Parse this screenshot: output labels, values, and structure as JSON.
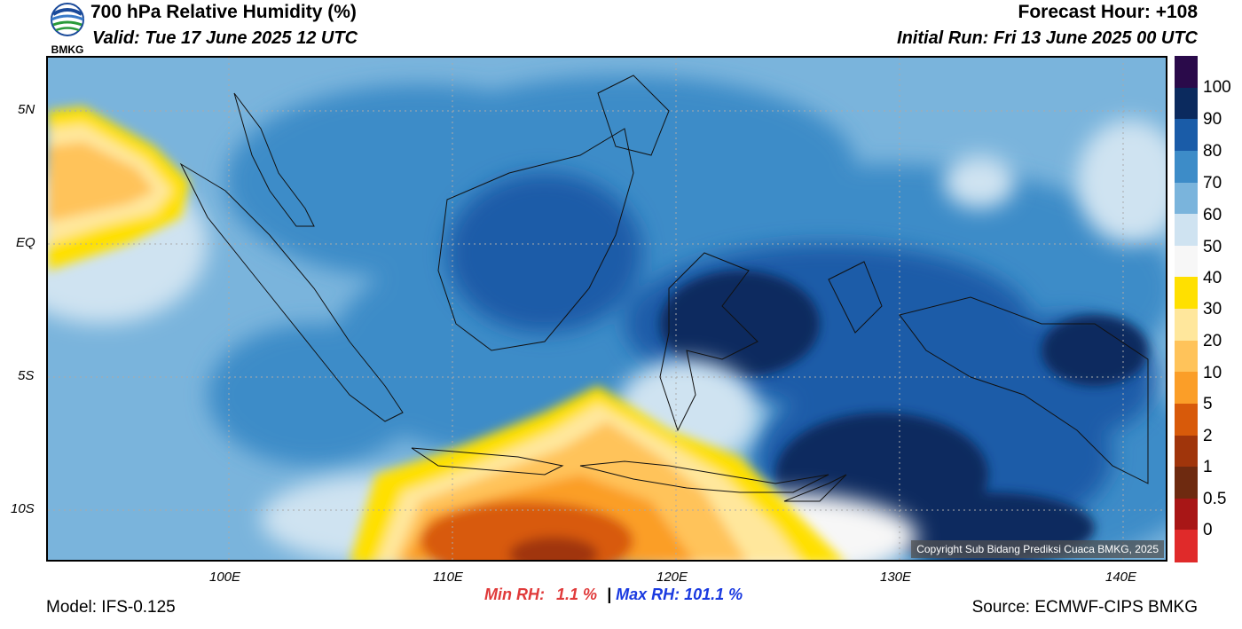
{
  "header": {
    "title": "700 hPa Relative Humidity (%)",
    "valid": "Valid: Tue 17 June 2025 12 UTC",
    "forecast_hour": "Forecast Hour: +108",
    "initial_run": "Initial Run: Fri 13 June 2025 00 UTC",
    "logo_text": "BMKG"
  },
  "map": {
    "lat_labels": [
      "5N",
      "EQ",
      "5S",
      "10S"
    ],
    "lon_labels": [
      "100E",
      "110E",
      "120E",
      "130E",
      "140E"
    ],
    "copyright": "Copyright Sub Bidang Prediksi Cuaca BMKG, 2025"
  },
  "colorbar": {
    "labels": [
      "100",
      "90",
      "80",
      "70",
      "60",
      "50",
      "40",
      "30",
      "20",
      "10",
      "5",
      "2",
      "1",
      "0.5",
      "0"
    ],
    "colors": [
      "#2a0a4a",
      "#0b2a5e",
      "#1a5ca8",
      "#3d8cc8",
      "#7ab4dc",
      "#cfe3f1",
      "#f7f7f7",
      "#ffe000",
      "#ffe79c",
      "#ffc35a",
      "#fb9e28",
      "#d85a0a",
      "#a0350b",
      "#6e2a10",
      "#a81616",
      "#e02a2a"
    ]
  },
  "footer": {
    "model": "Model: IFS-0.125",
    "min_rh_label": "Min RH:",
    "min_rh_value": "1.1 %",
    "separator": "|",
    "max_rh_label": "Max RH:",
    "max_rh_value": "101.1 %",
    "source": "Source: ECMWF-CIPS BMKG"
  }
}
